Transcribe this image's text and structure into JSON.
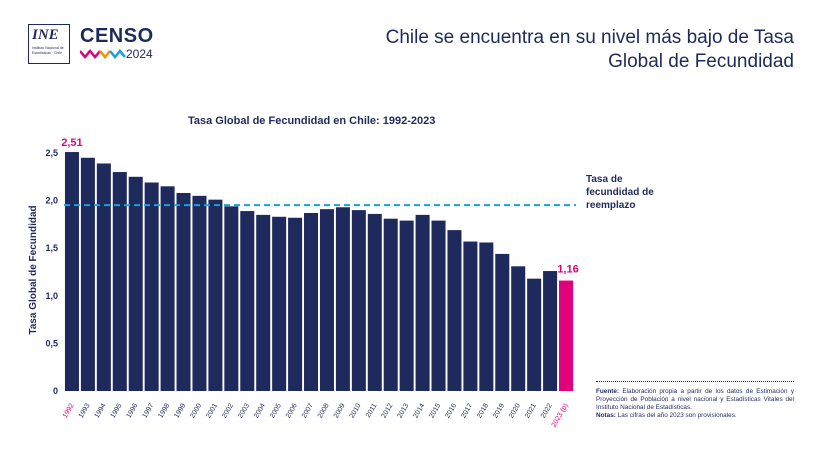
{
  "logos": {
    "ine_text": "INE",
    "ine_subtitle": "Instituto Nacional de Estadísticas · Chile",
    "censo_text": "CENSO",
    "censo_year": "2024"
  },
  "headline": "Chile se encuentra en su nivel más bajo de Tasa Global de Fecundidad",
  "chart_data": {
    "type": "bar",
    "title": "Tasa Global de Fecundidad en Chile: 1992-2023",
    "xlabel": "",
    "ylabel": "Tasa Global de Fecundidad",
    "ylim": [
      0,
      2.5
    ],
    "yticks": [
      "0",
      "0,5",
      "1,0",
      "1,5",
      "2,0",
      "2,5"
    ],
    "categories": [
      "1992",
      "1993",
      "1994",
      "1995",
      "1996",
      "1997",
      "1998",
      "1999",
      "2000",
      "2001",
      "2002",
      "2003",
      "2004",
      "2005",
      "2006",
      "2007",
      "2008",
      "2009",
      "2010",
      "2011",
      "2012",
      "2013",
      "2014",
      "2015",
      "2016",
      "2017",
      "2018",
      "2019",
      "2020",
      "2021",
      "2022",
      "2023 (p)"
    ],
    "values": [
      2.51,
      2.45,
      2.39,
      2.3,
      2.25,
      2.19,
      2.15,
      2.08,
      2.05,
      2.01,
      1.94,
      1.89,
      1.85,
      1.83,
      1.82,
      1.87,
      1.91,
      1.93,
      1.9,
      1.86,
      1.81,
      1.79,
      1.85,
      1.79,
      1.69,
      1.57,
      1.56,
      1.44,
      1.31,
      1.18,
      1.26,
      1.16
    ],
    "highlighted_labels": {
      "first": "2,51",
      "last": "1,16"
    },
    "replacement_level": 2.1,
    "replacement_label": "Tasa de fecundidad de reemplazo",
    "colors": {
      "bar": "#1f2a5c",
      "highlight": "#e2007a",
      "reference_line": "#1aa0dc",
      "text": "#1f2a5c"
    },
    "grid": false
  },
  "source": {
    "label": "Fuente:",
    "text": "Elaboración propia a partir de los datos de Estimación y Proyección de Población a nivel nacional y Estadísticas Vitales del Instituto Nacional de Estadísticas.",
    "notes_label": "Notas:",
    "notes_text": "Las cifras del año 2023 son provisionales."
  }
}
